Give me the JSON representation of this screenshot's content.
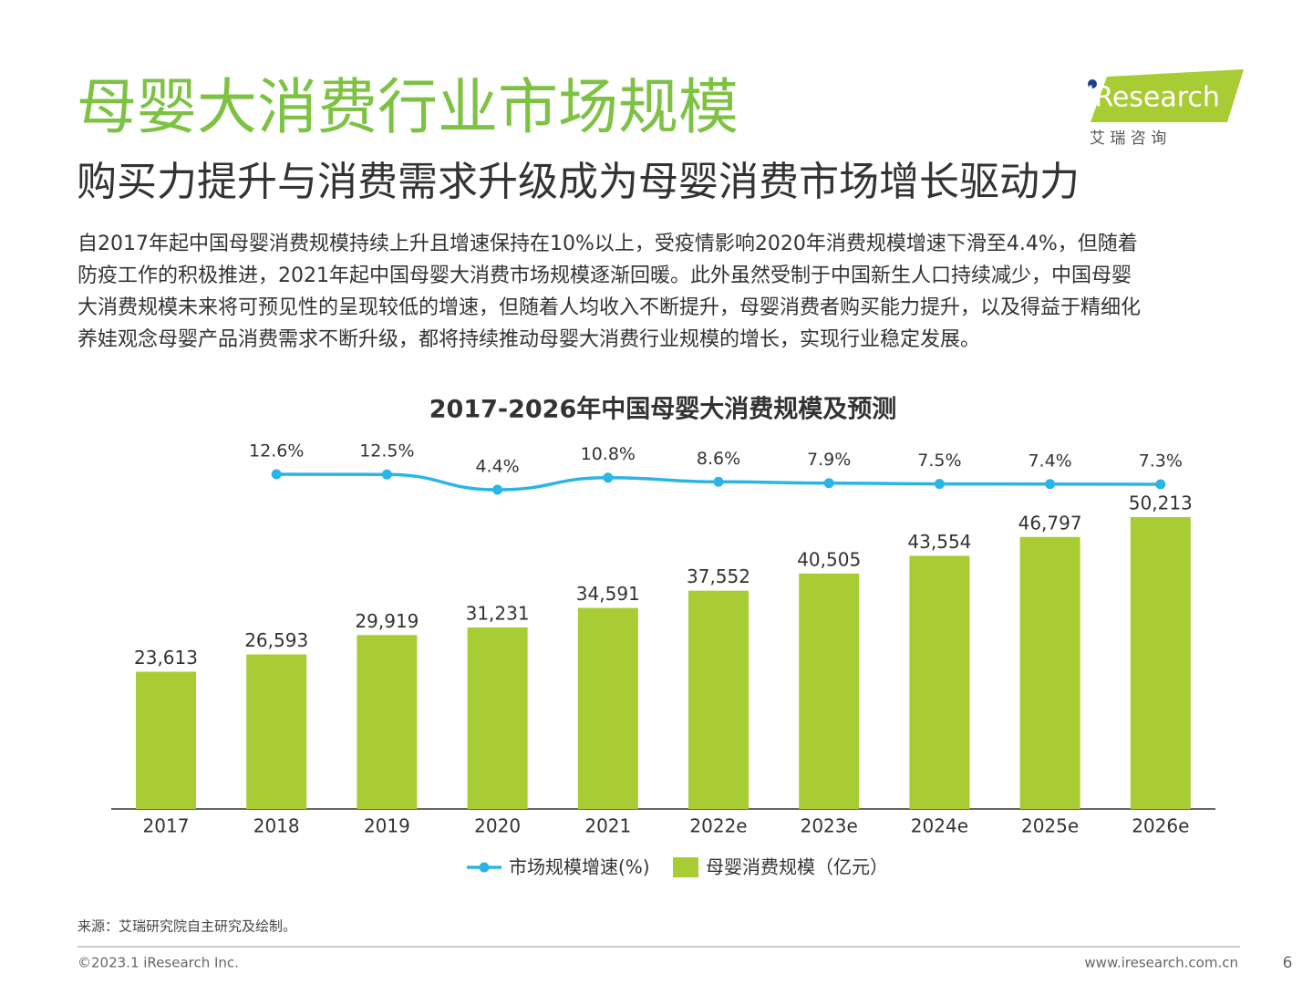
{
  "header": {
    "title": "母婴大消费行业市场规模",
    "subtitle": "购买力提升与消费需求升级成为母婴消费市场增长驱动力",
    "logo": "iResearch",
    "logo_cn": "艾 瑞 咨 询",
    "paragraph": [
      "自2017年起中国母婴消费规模持续上升且增速保持在10%以上，受疫情影响2020年消费规模增速下滑至4.4%，但随着",
      "防疫工作的积极推进，2021年起中国母婴大消费市场规模逐渐回暖。此外虽然受制于中国新生人口持续减少，中国母婴",
      "大消费规模未来将可预见性的呈现较低的增速，但随着人均收入不断提升，母婴消费者购买能力提升，以及得益于精细化",
      "养娃观念母婴产品消费需求不断升级，都将持续推动母婴大消费行业规模的增长，实现行业稳定发展。"
    ]
  },
  "chart_data": {
    "type": "bar",
    "title": "2017-2026年中国母婴大消费规模及预测",
    "categories": [
      "2017",
      "2018",
      "2019",
      "2020",
      "2021",
      "2022e",
      "2023e",
      "2024e",
      "2025e",
      "2026e"
    ],
    "series": [
      {
        "name": "母婴消费规模（亿元）",
        "type": "bar",
        "color": "#a8cc34",
        "values": [
          23613,
          26593,
          29919,
          31231,
          34591,
          37552,
          40505,
          43554,
          46797,
          50213
        ],
        "value_labels": [
          "23,613",
          "26,593",
          "29,919",
          "31,231",
          "34,591",
          "37,552",
          "40,505",
          "43,554",
          "46,797",
          "50,213"
        ]
      },
      {
        "name": "市场规模增速(%)",
        "type": "line",
        "color": "#2bb5e6",
        "values": [
          null,
          12.6,
          12.5,
          4.4,
          10.8,
          8.6,
          7.9,
          7.5,
          7.4,
          7.3
        ],
        "value_labels": [
          null,
          "12.6%",
          "12.5%",
          "4.4%",
          "10.8%",
          "8.6%",
          "7.9%",
          "7.5%",
          "7.4%",
          "7.3%"
        ]
      }
    ]
  },
  "footer": {
    "source": "来源：艾瑞研究院自主研究及绘制。",
    "copyright": "©2023.1 iResearch Inc.",
    "url": "www.iresearch.com.cn",
    "page": "6"
  }
}
